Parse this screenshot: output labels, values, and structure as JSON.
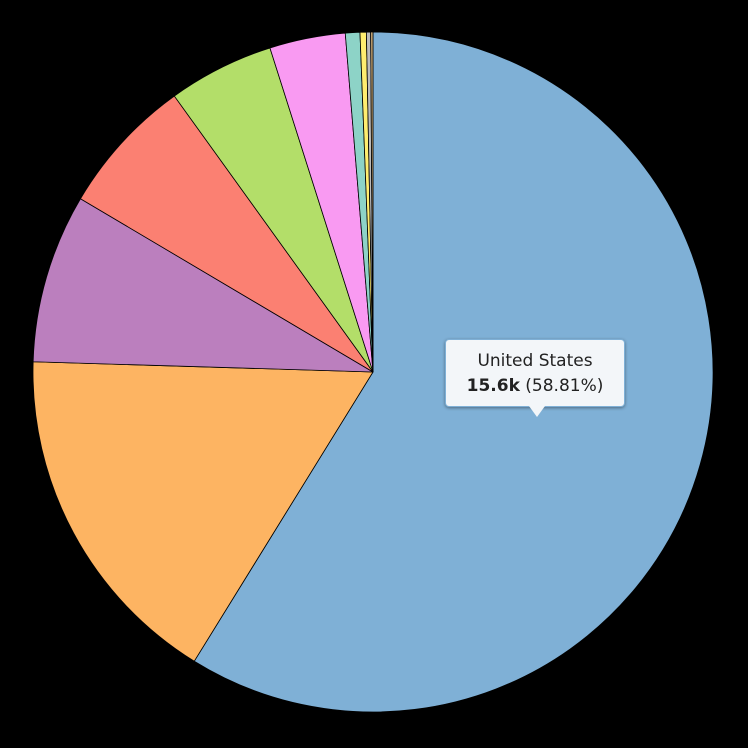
{
  "chart_data": {
    "type": "pie",
    "categories": [
      "United States",
      null,
      null,
      null,
      null,
      null,
      null,
      null,
      null,
      null
    ],
    "values": [
      58.81,
      16.67,
      8.03,
      6.56,
      5.03,
      3.6,
      0.69,
      0.3,
      0.2,
      0.11
    ],
    "value_labels": [
      "(58.81%)",
      null,
      null,
      null,
      null,
      null,
      null,
      null,
      null,
      null
    ],
    "colors": [
      "#7fb0d6",
      "#fdb462",
      "#bb7fbe",
      "#fb8072",
      "#b3de69",
      "#f99af2",
      "#8dd3c7",
      "#ffed6f",
      "#bbbbbb",
      "#ccaa77"
    ],
    "tooltip": {
      "count": "15.6k"
    }
  }
}
